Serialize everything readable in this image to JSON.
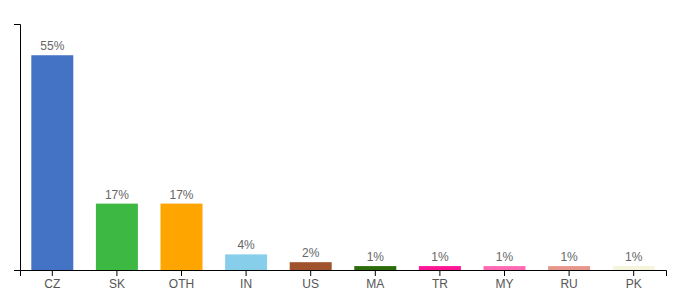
{
  "chart_data": {
    "type": "bar",
    "categories": [
      "CZ",
      "SK",
      "OTH",
      "IN",
      "US",
      "MA",
      "TR",
      "MY",
      "RU",
      "PK"
    ],
    "values": [
      55,
      17,
      17,
      4,
      2,
      1,
      1,
      1,
      1,
      1
    ],
    "value_labels": [
      "55%",
      "17%",
      "17%",
      "4%",
      "2%",
      "1%",
      "1%",
      "1%",
      "1%",
      "1%"
    ],
    "colors": [
      "#4472C4",
      "#3CB843",
      "#FFA500",
      "#87CEEB",
      "#A0522D",
      "#2D6A0A",
      "#FF1493",
      "#FF69B4",
      "#E8968C",
      "#F5F5DC"
    ],
    "ylim": [
      0,
      63
    ],
    "data_labels": true,
    "tick_labels": "x",
    "grid": false
  }
}
